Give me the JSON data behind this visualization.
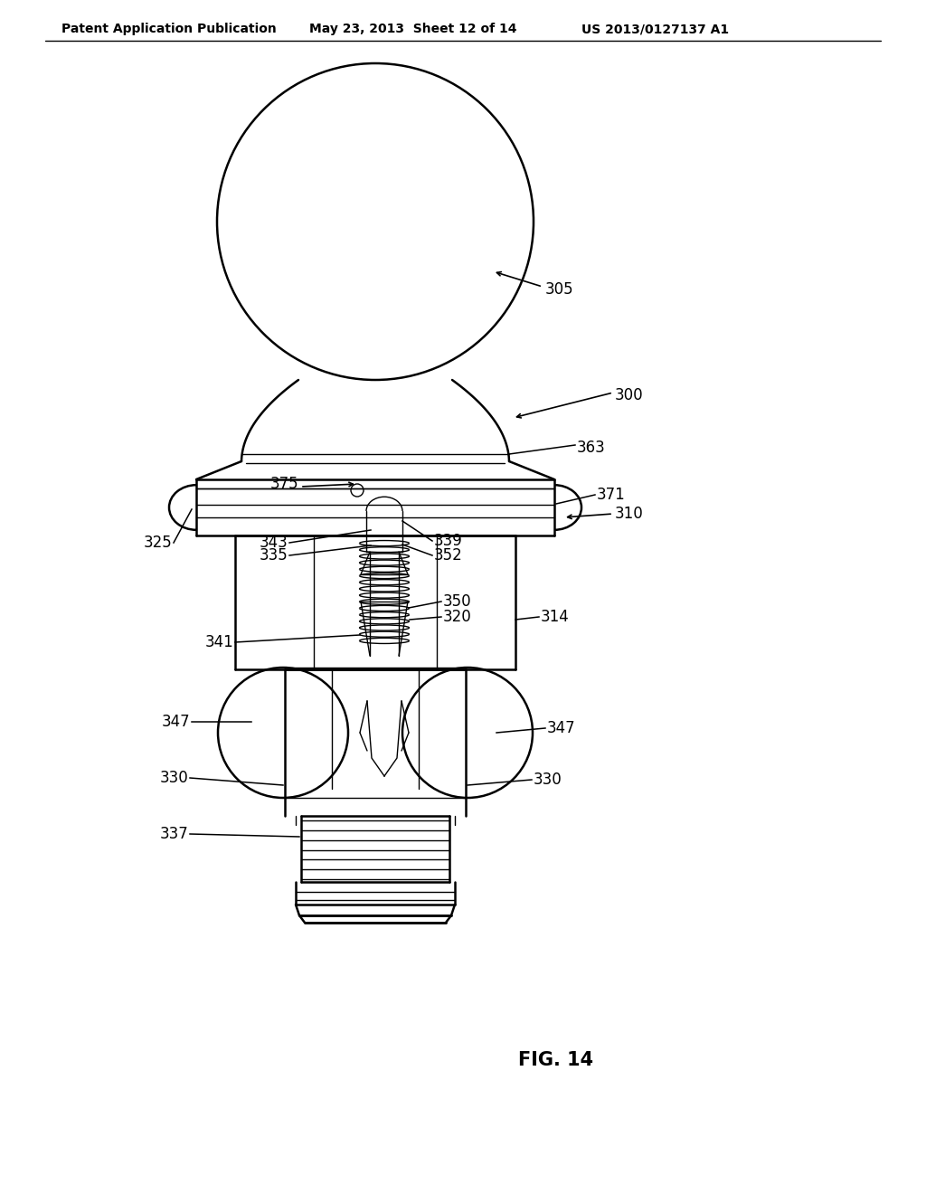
{
  "title_left": "Patent Application Publication",
  "title_mid": "May 23, 2013  Sheet 12 of 14",
  "title_right": "US 2013/0127137 A1",
  "fig_label": "FIG. 14",
  "bg_color": "#ffffff",
  "line_color": "#000000"
}
